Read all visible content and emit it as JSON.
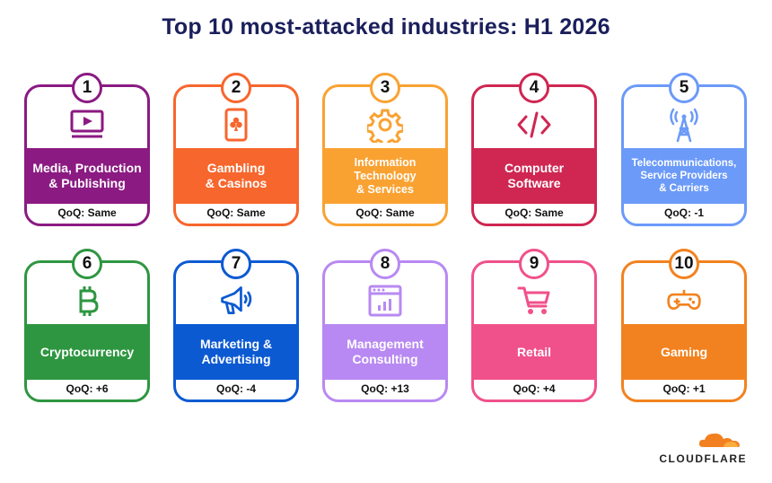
{
  "title": "Top 10 most-attacked industries: H1 2026",
  "brand": "CLOUDFLARE",
  "cards": [
    {
      "rank": "1",
      "label": "Media, Production\n& Publishing",
      "qoq": "QoQ: Same",
      "color": "#8b1a82",
      "icon": "video-player-icon"
    },
    {
      "rank": "2",
      "label": "Gambling\n& Casinos",
      "qoq": "QoQ: Same",
      "color": "#f7662d",
      "icon": "playing-card-icon"
    },
    {
      "rank": "3",
      "label": "Information\nTechnology\n& Services",
      "qoq": "QoQ: Same",
      "color": "#f9a232",
      "icon": "gear-icon"
    },
    {
      "rank": "4",
      "label": "Computer\nSoftware",
      "qoq": "QoQ: Same",
      "color": "#cf2752",
      "icon": "code-icon"
    },
    {
      "rank": "5",
      "label": "Telecommunications,\nService Providers\n& Carriers",
      "qoq": "QoQ: -1",
      "color": "#6b9af8",
      "icon": "antenna-tower-icon"
    },
    {
      "rank": "6",
      "label": "Cryptocurrency",
      "qoq": "QoQ: +6",
      "color": "#2e9641",
      "icon": "bitcoin-icon"
    },
    {
      "rank": "7",
      "label": "Marketing &\nAdvertising",
      "qoq": "QoQ: -4",
      "color": "#0b5ad2",
      "icon": "megaphone-icon"
    },
    {
      "rank": "8",
      "label": "Management\nConsulting",
      "qoq": "QoQ: +13",
      "color": "#b889f2",
      "icon": "dashboard-chart-icon"
    },
    {
      "rank": "9",
      "label": "Retail",
      "qoq": "QoQ: +4",
      "color": "#f0518b",
      "icon": "shopping-cart-icon"
    },
    {
      "rank": "10",
      "label": "Gaming",
      "qoq": "QoQ: +1",
      "color": "#f2821f",
      "icon": "gamepad-icon"
    }
  ]
}
